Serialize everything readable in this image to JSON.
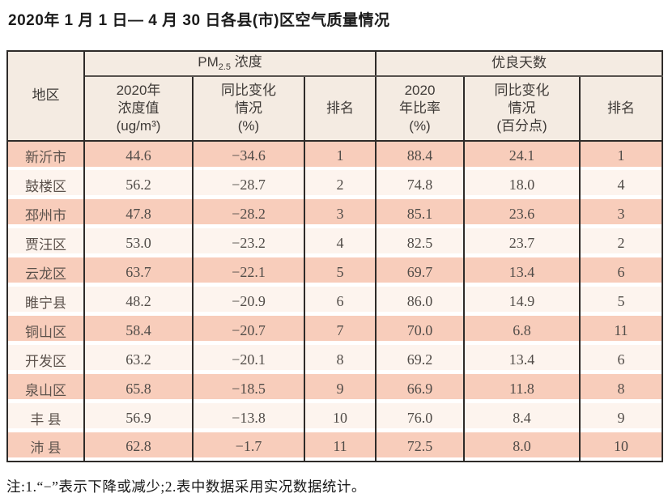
{
  "title": "2020年 1 月 1 日— 4 月 30 日各县(市)区空气质量情况",
  "table": {
    "region_header": "地区",
    "group_headers": {
      "pm25_prefix": "PM",
      "pm25_sub": "2.5",
      "pm25_suffix": " 浓度",
      "good_days": "优良天数"
    },
    "sub_headers": {
      "pm_value": "2020年\n浓度值\n(ug/m³)",
      "pm_change": "同比变化\n情况\n(%)",
      "pm_rank": "排名",
      "gd_rate": "2020\n年比率\n(%)",
      "gd_change": "同比变化\n情况\n(百分点)",
      "gd_rank": "排名"
    },
    "rows": [
      {
        "region": "新沂市",
        "pm_value": "44.6",
        "pm_change": "−34.6",
        "pm_rank": "1",
        "gd_rate": "88.4",
        "gd_change": "24.1",
        "gd_rank": "1"
      },
      {
        "region": "鼓楼区",
        "pm_value": "56.2",
        "pm_change": "−28.7",
        "pm_rank": "2",
        "gd_rate": "74.8",
        "gd_change": "18.0",
        "gd_rank": "4"
      },
      {
        "region": "邳州市",
        "pm_value": "47.8",
        "pm_change": "−28.2",
        "pm_rank": "3",
        "gd_rate": "85.1",
        "gd_change": "23.6",
        "gd_rank": "3"
      },
      {
        "region": "贾汪区",
        "pm_value": "53.0",
        "pm_change": "−23.2",
        "pm_rank": "4",
        "gd_rate": "82.5",
        "gd_change": "23.7",
        "gd_rank": "2"
      },
      {
        "region": "云龙区",
        "pm_value": "63.7",
        "pm_change": "−22.1",
        "pm_rank": "5",
        "gd_rate": "69.7",
        "gd_change": "13.4",
        "gd_rank": "6"
      },
      {
        "region": "睢宁县",
        "pm_value": "48.2",
        "pm_change": "−20.9",
        "pm_rank": "6",
        "gd_rate": "86.0",
        "gd_change": "14.9",
        "gd_rank": "5"
      },
      {
        "region": "铜山区",
        "pm_value": "58.4",
        "pm_change": "−20.7",
        "pm_rank": "7",
        "gd_rate": "70.0",
        "gd_change": "6.8",
        "gd_rank": "11"
      },
      {
        "region": "开发区",
        "pm_value": "63.2",
        "pm_change": "−20.1",
        "pm_rank": "8",
        "gd_rate": "69.2",
        "gd_change": "13.4",
        "gd_rank": "6"
      },
      {
        "region": "泉山区",
        "pm_value": "65.8",
        "pm_change": "−18.5",
        "pm_rank": "9",
        "gd_rate": "66.9",
        "gd_change": "11.8",
        "gd_rank": "8"
      },
      {
        "region": "丰 县",
        "pm_value": "56.9",
        "pm_change": "−13.8",
        "pm_rank": "10",
        "gd_rate": "76.0",
        "gd_change": "8.4",
        "gd_rank": "9"
      },
      {
        "region": "沛 县",
        "pm_value": "62.8",
        "pm_change": "−1.7",
        "pm_rank": "11",
        "gd_rate": "72.5",
        "gd_change": "8.0",
        "gd_rank": "10"
      }
    ]
  },
  "footnote": "注:1.“−”表示下降或减少;2.表中数据采用实况数据统计。",
  "colors": {
    "row_salmon": "#f8cdbb",
    "row_cream": "#fdf4ee",
    "header_bg": "#f4ebe2",
    "border_dark": "#2e2b29",
    "text_dark": "#514c48"
  }
}
